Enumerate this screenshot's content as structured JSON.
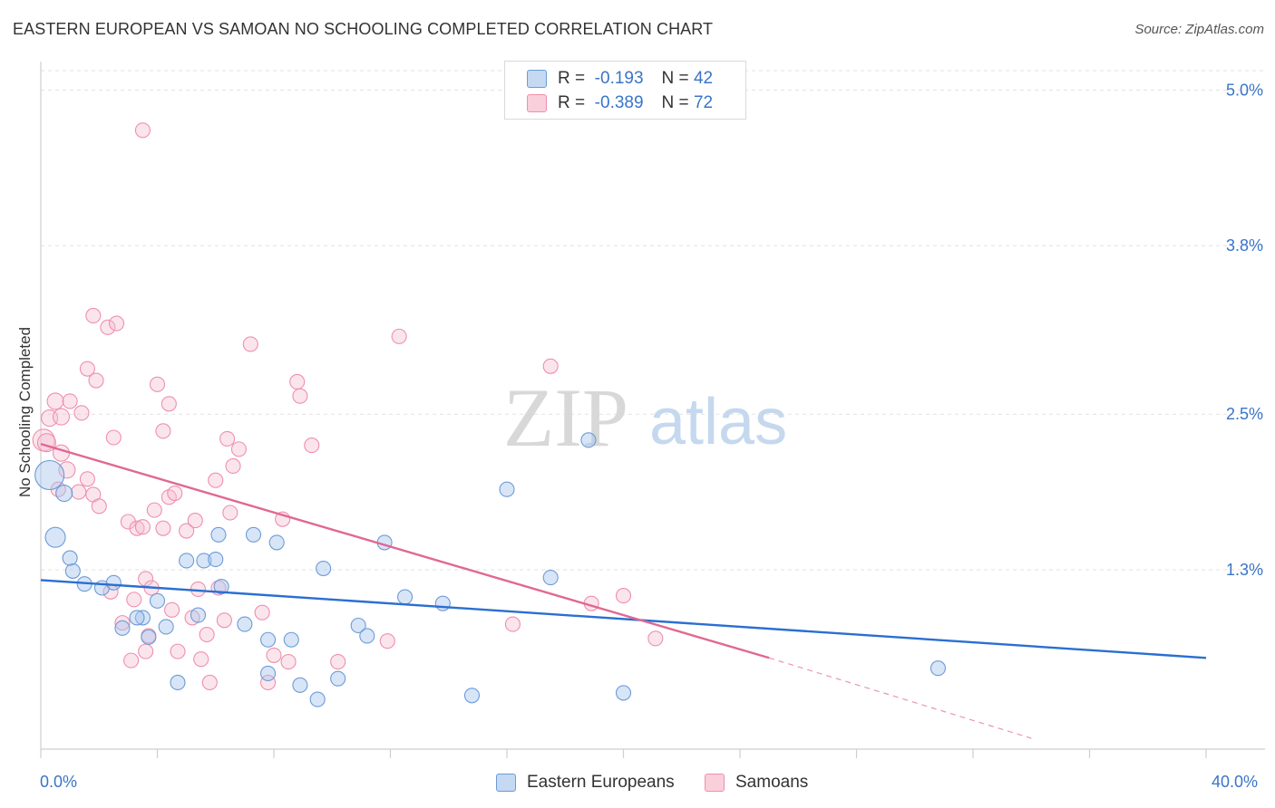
{
  "header": {
    "title": "EASTERN EUROPEAN VS SAMOAN NO SCHOOLING COMPLETED CORRELATION CHART",
    "source": "Source: ZipAtlas.com"
  },
  "legend": {
    "rows": [
      {
        "r_label": "R =",
        "r_value": "-0.193",
        "n_label": "N =",
        "n_value": "42"
      },
      {
        "r_label": "R =",
        "r_value": "-0.389",
        "n_label": "N =",
        "n_value": "72"
      }
    ]
  },
  "bottom_legend": [
    "Eastern Europeans",
    "Samoans"
  ],
  "watermark": {
    "zip": "ZIP",
    "atlas": "atlas"
  },
  "chart_data": {
    "type": "scatter",
    "title": "EASTERN EUROPEAN VS SAMOAN NO SCHOOLING COMPLETED CORRELATION CHART",
    "xlabel": "",
    "ylabel": "No Schooling Completed",
    "xlim": [
      0,
      40
    ],
    "ylim": [
      0,
      5.15
    ],
    "x_tick_labels": [
      "0.0%",
      "40.0%"
    ],
    "y_ticks": [
      {
        "value": 1.3,
        "label": "1.3%"
      },
      {
        "value": 2.5,
        "label": "2.5%"
      },
      {
        "value": 3.8,
        "label": "3.8%"
      },
      {
        "value": 5.0,
        "label": "5.0%"
      }
    ],
    "grid": true,
    "colors": {
      "eastern": "#6b9bd8",
      "samoan": "#ef8fad",
      "eastern_line": "#2a6fd1",
      "samoan_line": "#e06893",
      "tick_text": "#3a74c8"
    },
    "series": [
      {
        "name": "Eastern Europeans",
        "points": [
          [
            0.3,
            2.03,
            16
          ],
          [
            0.5,
            1.55,
            11
          ],
          [
            0.8,
            1.89,
            9
          ],
          [
            1.1,
            1.29,
            8
          ],
          [
            1.0,
            1.39,
            8
          ],
          [
            1.5,
            1.19,
            8
          ],
          [
            2.1,
            1.16,
            8
          ],
          [
            2.5,
            1.2,
            8
          ],
          [
            2.8,
            0.85,
            8
          ],
          [
            3.5,
            0.93,
            8
          ],
          [
            3.7,
            0.78,
            8
          ],
          [
            3.3,
            0.93,
            8
          ],
          [
            4.0,
            1.06,
            8
          ],
          [
            4.3,
            0.86,
            8
          ],
          [
            4.7,
            0.43,
            8
          ],
          [
            5.0,
            1.37,
            8
          ],
          [
            5.4,
            0.95,
            8
          ],
          [
            5.6,
            1.37,
            8
          ],
          [
            6.0,
            1.38,
            8
          ],
          [
            6.2,
            1.17,
            8
          ],
          [
            6.1,
            1.57,
            8
          ],
          [
            7.0,
            0.88,
            8
          ],
          [
            7.3,
            1.57,
            8
          ],
          [
            7.8,
            0.5,
            8
          ],
          [
            7.8,
            0.76,
            8
          ],
          [
            8.1,
            1.51,
            8
          ],
          [
            8.6,
            0.76,
            8
          ],
          [
            8.9,
            0.41,
            8
          ],
          [
            9.5,
            0.3,
            8
          ],
          [
            9.7,
            1.31,
            8
          ],
          [
            10.2,
            0.46,
            8
          ],
          [
            10.9,
            0.87,
            8
          ],
          [
            11.2,
            0.79,
            8
          ],
          [
            11.8,
            1.51,
            8
          ],
          [
            12.5,
            1.09,
            8
          ],
          [
            13.8,
            1.04,
            8
          ],
          [
            14.8,
            0.33,
            8
          ],
          [
            16.0,
            1.92,
            8
          ],
          [
            17.5,
            1.24,
            8
          ],
          [
            18.8,
            2.3,
            8
          ],
          [
            20.0,
            0.35,
            8
          ],
          [
            30.8,
            0.54,
            8
          ]
        ]
      },
      {
        "name": "Samoans",
        "points": [
          [
            0.1,
            2.3,
            12
          ],
          [
            0.2,
            2.28,
            10
          ],
          [
            0.3,
            2.47,
            9
          ],
          [
            0.5,
            2.6,
            9
          ],
          [
            0.7,
            2.48,
            9
          ],
          [
            0.7,
            2.2,
            9
          ],
          [
            0.9,
            2.07,
            9
          ],
          [
            0.6,
            1.92,
            8
          ],
          [
            1.0,
            2.6,
            8
          ],
          [
            1.4,
            2.51,
            8
          ],
          [
            1.3,
            1.9,
            8
          ],
          [
            1.6,
            2.0,
            8
          ],
          [
            1.8,
            1.88,
            8
          ],
          [
            2.0,
            1.79,
            8
          ],
          [
            1.6,
            2.85,
            8
          ],
          [
            1.9,
            2.76,
            8
          ],
          [
            2.5,
            2.32,
            8
          ],
          [
            2.3,
            3.17,
            8
          ],
          [
            2.4,
            1.13,
            8
          ],
          [
            2.6,
            3.2,
            8
          ],
          [
            1.8,
            3.26,
            8
          ],
          [
            2.8,
            0.89,
            8
          ],
          [
            3.0,
            1.67,
            8
          ],
          [
            3.1,
            0.6,
            8
          ],
          [
            3.2,
            1.07,
            8
          ],
          [
            3.3,
            1.62,
            8
          ],
          [
            3.5,
            4.69,
            8
          ],
          [
            3.5,
            1.63,
            8
          ],
          [
            3.6,
            1.23,
            8
          ],
          [
            3.6,
            0.67,
            8
          ],
          [
            3.7,
            0.79,
            8
          ],
          [
            3.8,
            1.16,
            8
          ],
          [
            3.9,
            1.76,
            8
          ],
          [
            4.0,
            2.73,
            8
          ],
          [
            4.2,
            1.62,
            8
          ],
          [
            4.2,
            2.37,
            8
          ],
          [
            4.4,
            1.86,
            8
          ],
          [
            4.4,
            2.58,
            8
          ],
          [
            4.5,
            0.99,
            8
          ],
          [
            4.6,
            1.89,
            8
          ],
          [
            4.7,
            0.67,
            8
          ],
          [
            5.0,
            1.6,
            8
          ],
          [
            5.2,
            0.93,
            8
          ],
          [
            5.3,
            1.68,
            8
          ],
          [
            5.4,
            1.15,
            8
          ],
          [
            5.5,
            0.61,
            8
          ],
          [
            5.7,
            0.8,
            8
          ],
          [
            5.8,
            0.43,
            8
          ],
          [
            6.0,
            1.99,
            8
          ],
          [
            6.1,
            1.16,
            8
          ],
          [
            6.3,
            0.91,
            8
          ],
          [
            6.4,
            2.31,
            8
          ],
          [
            6.5,
            1.74,
            8
          ],
          [
            6.6,
            2.1,
            8
          ],
          [
            6.8,
            2.23,
            8
          ],
          [
            7.2,
            3.04,
            8
          ],
          [
            7.6,
            0.97,
            8
          ],
          [
            7.8,
            0.43,
            8
          ],
          [
            8.0,
            0.64,
            8
          ],
          [
            8.3,
            1.69,
            8
          ],
          [
            8.5,
            0.59,
            8
          ],
          [
            8.8,
            2.75,
            8
          ],
          [
            8.9,
            2.64,
            8
          ],
          [
            9.3,
            2.26,
            8
          ],
          [
            10.2,
            0.59,
            8
          ],
          [
            11.9,
            0.75,
            8
          ],
          [
            12.3,
            3.1,
            8
          ],
          [
            16.2,
            0.88,
            8
          ],
          [
            17.5,
            2.87,
            8
          ],
          [
            18.9,
            1.04,
            8
          ],
          [
            20.0,
            1.1,
            8
          ],
          [
            21.1,
            0.77,
            8
          ]
        ]
      }
    ],
    "trendlines": [
      {
        "series": "Eastern Europeans",
        "x": [
          0,
          40
        ],
        "y": [
          1.22,
          0.62
        ]
      },
      {
        "series": "Samoans",
        "x": [
          0,
          25
        ],
        "y": [
          2.27,
          0.62
        ],
        "dashed_to": [
          34,
          0.0
        ]
      }
    ]
  }
}
